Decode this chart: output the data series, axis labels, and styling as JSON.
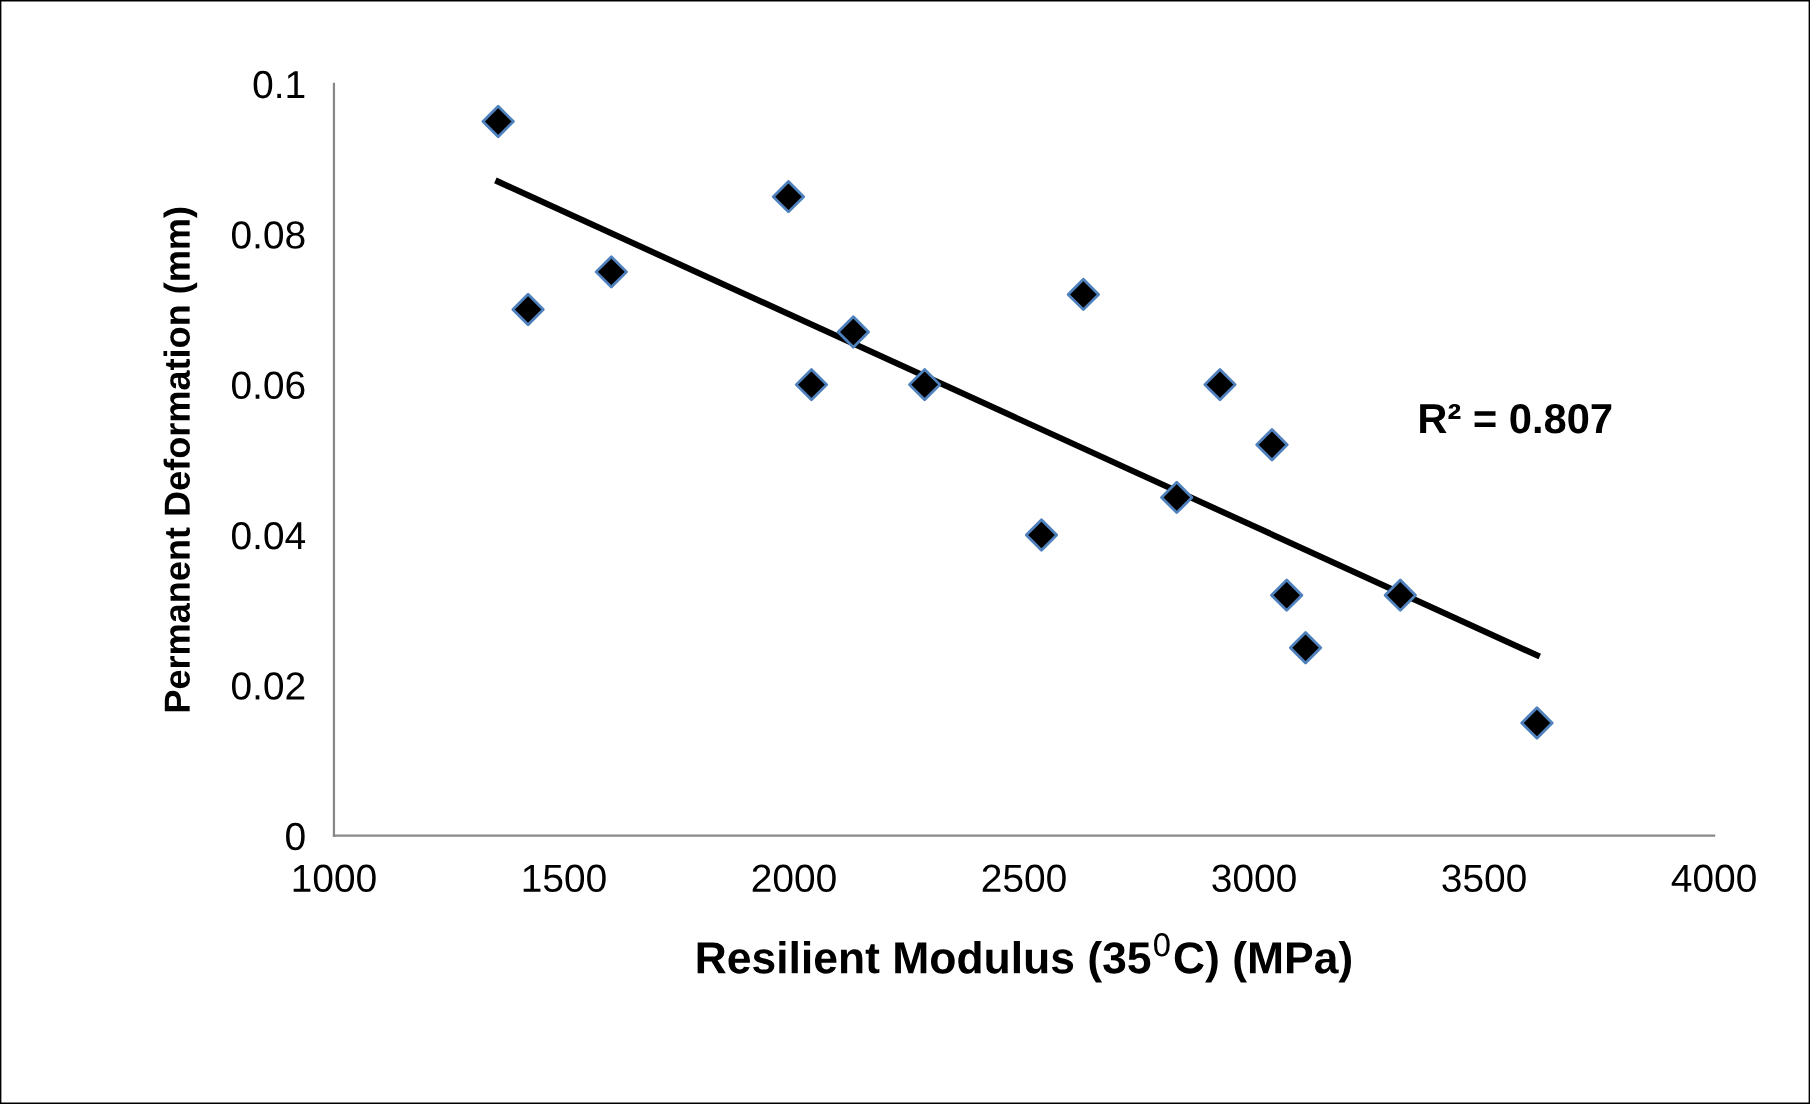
{
  "chart_data": {
    "type": "scatter",
    "xlabel": "Resilient Modulus (35$^{0}$C) (MPa)",
    "ylabel": "Permanent Deformation (mm)",
    "annotations": [
      "R² = 0.807"
    ],
    "xlim": [
      1000,
      4000
    ],
    "xticks": [
      1000,
      1500,
      2000,
      2500,
      3000,
      3500,
      4000
    ],
    "ylim": [
      0,
      0.1
    ],
    "yticks": [
      0,
      0.02,
      0.04,
      0.06,
      0.08,
      0.1
    ],
    "grid": false,
    "legend": false,
    "series": [
      {
        "marker": "diamond",
        "color": "#000000",
        "x": [
          1357,
          1422,
          1603,
          1988,
          2038,
          2129,
          2284,
          2538,
          2629,
          2832,
          2926,
          3039,
          3071,
          3112,
          3318,
          3615
        ],
        "values": [
          0.095,
          0.07,
          0.075,
          0.085,
          0.06,
          0.067,
          0.06,
          0.04,
          0.072,
          0.045,
          0.06,
          0.052,
          0.032,
          0.025,
          0.032,
          0.015
        ]
      },
      {
        "type": "line",
        "marker": "none",
        "line_style": "solid",
        "color": "#000000",
        "x": [
          1357,
          3615
        ],
        "values": [
          0.087,
          0.024
        ]
      }
    ]
  }
}
